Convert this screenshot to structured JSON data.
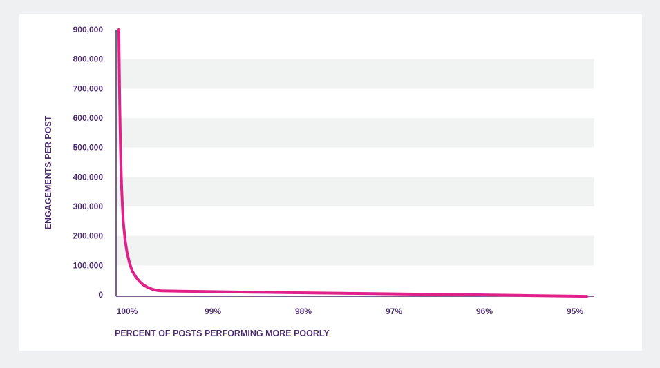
{
  "chart_data": {
    "type": "line",
    "title": "",
    "xlabel": "PERCENT OF POSTS PERFORMING MORE POORLY",
    "ylabel": "ENGAGEMENTS PER POST",
    "x_tick_labels": [
      "100%",
      "99%",
      "98%",
      "97%",
      "96%",
      "95%"
    ],
    "x_ticks": [
      100,
      99,
      98,
      97,
      96,
      95
    ],
    "x_reversed": true,
    "y_tick_labels": [
      "0",
      "100,000",
      "200,000",
      "300,000",
      "400,000",
      "500,000",
      "600,000",
      "700,000",
      "800,000",
      "900,000"
    ],
    "y_ticks": [
      0,
      100000,
      200000,
      300000,
      400000,
      500000,
      600000,
      700000,
      800000,
      900000
    ],
    "xlim": [
      100,
      94.8
    ],
    "ylim": [
      0,
      900000
    ],
    "grid": "alternating horizontal bands",
    "series": [
      {
        "color": "#e0218a",
        "x": [
          99.97,
          99.96,
          99.95,
          99.94,
          99.93,
          99.92,
          99.9,
          99.88,
          99.85,
          99.82,
          99.78,
          99.74,
          99.7,
          99.65,
          99.6,
          99.55,
          99.5,
          99.4,
          99.3,
          99.0,
          98.5,
          98.0,
          97.5,
          97.0,
          96.5,
          96.0,
          95.5,
          94.8
        ],
        "y": [
          900000,
          650000,
          480000,
          370000,
          300000,
          245000,
          185000,
          145000,
          105000,
          80000,
          60000,
          45000,
          34000,
          25000,
          19000,
          15000,
          13500,
          13000,
          12500,
          11000,
          9000,
          7000,
          5200,
          3500,
          1500,
          0,
          -2000,
          -5000
        ]
      }
    ]
  }
}
